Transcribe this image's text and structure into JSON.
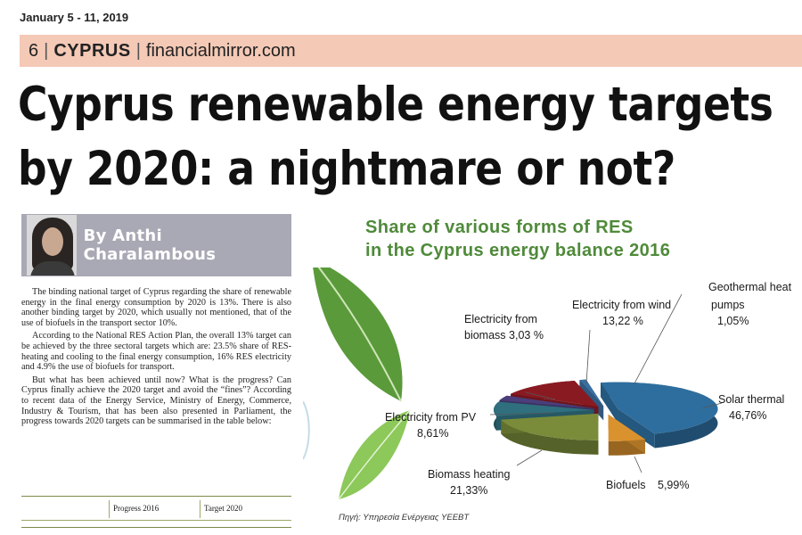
{
  "masthead": {
    "date": "January 5 - 11, 2019",
    "page_number": "6",
    "section": "CYPRUS",
    "site": "financialmirror.com"
  },
  "headline": {
    "line1": "Cyprus renewable energy targets",
    "line2": "by 2020: a nightmare or not?"
  },
  "byline": {
    "author": "By Anthi Charalambous"
  },
  "article": {
    "paragraphs": [
      "The binding national target of Cyprus regarding the share of renewable energy in the final energy consumption by 2020 is 13%. There is also another binding target by 2020, which usually not mentioned, that of the use of biofuels in the transport sector 10%.",
      "According to the National RES Action Plan, the overall 13% target can be achieved by the three sectoral targets which are: 23.5% share of RES-heating and cooling to the final energy consumption, 16% RES electricity and 4.9% the use of biofuels for transport.",
      "But what has been achieved until now? What is the progress? Can Cyprus finally achieve the 2020 target and avoid the “fines”? According to recent data of the Energy Service, Ministry of Energy, Commerce, Industry & Tourism, that has been also presented in Parliament, the progress towards 2020 targets can be summarised in the table below:"
    ],
    "table_headers": [
      "Progress 2016",
      "Target 2020"
    ]
  },
  "chart_data": {
    "type": "pie",
    "title_line1": "Share of various forms of RES",
    "title_line2": "in the Cyprus energy balance 2016",
    "slices": [
      {
        "label": "Solar thermal",
        "value_text": "46,76%",
        "value": 46.76,
        "color": "#2e6e9e"
      },
      {
        "label": "Biofuels",
        "value_text": "5,99%",
        "value": 5.99,
        "color": "#d9922e"
      },
      {
        "label": "Biomass heating",
        "value_text": "21,33%",
        "value": 21.33,
        "color": "#7a8c3a"
      },
      {
        "label": "Electricity from PV",
        "value_text": "8,61%",
        "value": 8.61,
        "color": "#2f6f7e"
      },
      {
        "label": "Electricity from biomass",
        "value_text": "3,03 %",
        "value": 3.03,
        "color": "#4a3f7a"
      },
      {
        "label": "Electricity from wind",
        "value_text": "13,22 %",
        "value": 13.22,
        "color": "#8a1a22"
      },
      {
        "label": "Geothermal heat pumps",
        "value_text": "1,05%",
        "value": 1.05,
        "color": "#3b6fa0"
      }
    ],
    "source": "Πηγή: Υπηρεσία Ενέργειας ΥΕΕΒΤ"
  }
}
